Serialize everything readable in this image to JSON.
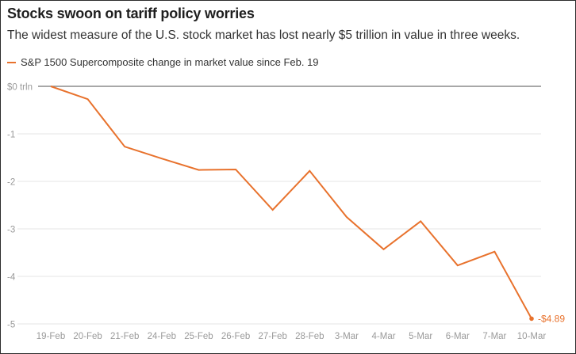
{
  "header": {
    "title": "Stocks swoon on tariff policy worries",
    "subtitle": "The widest measure of the U.S. stock market has lost nearly $5 trillion in value in three weeks."
  },
  "colors": {
    "series": "#e8722d",
    "grid": "#e6e6e6",
    "zero_line": "#8c8c8c",
    "tick_text": "#9a9a9a"
  },
  "chart_data": {
    "type": "line",
    "title": "Stocks swoon on tariff policy worries",
    "xlabel": "",
    "ylabel": "",
    "categories": [
      "19-Feb",
      "20-Feb",
      "21-Feb",
      "24-Feb",
      "25-Feb",
      "26-Feb",
      "27-Feb",
      "28-Feb",
      "3-Mar",
      "4-Mar",
      "5-Mar",
      "6-Mar",
      "7-Mar",
      "10-Mar"
    ],
    "series": [
      {
        "name": "S&P 1500 Supercomposite change in market value since Feb. 19",
        "values": [
          0,
          -0.27,
          -1.27,
          -1.52,
          -1.76,
          -1.75,
          -2.6,
          -1.78,
          -2.75,
          -3.43,
          -2.84,
          -3.77,
          -3.48,
          -4.89
        ]
      }
    ],
    "y_ticks": [
      {
        "value": 0,
        "label": "$0 trln"
      },
      {
        "value": -1,
        "label": "-1"
      },
      {
        "value": -2,
        "label": "-2"
      },
      {
        "value": -3,
        "label": "-3"
      },
      {
        "value": -4,
        "label": "-4"
      },
      {
        "value": -5,
        "label": "-5"
      }
    ],
    "ylim": [
      -5,
      0
    ],
    "grid": true,
    "end_label": "-$4.89",
    "legend_position": "top-left"
  }
}
